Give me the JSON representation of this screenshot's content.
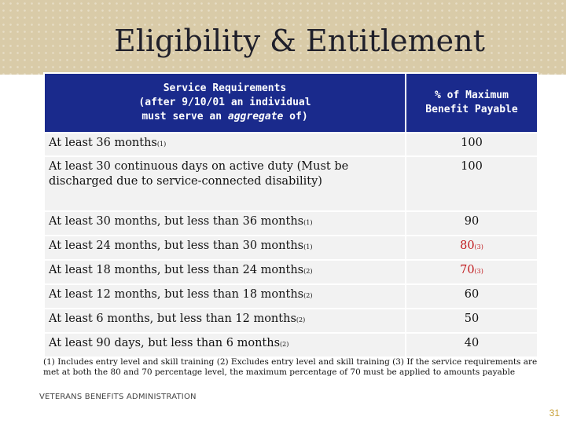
{
  "slide": {
    "title": "Eligibility & Entitlement",
    "footer": "VETERANS BENEFITS ADMINISTRATION",
    "page_number": "31"
  },
  "table": {
    "header": {
      "col1_line1": "Service Requirements",
      "col1_line2": "(after 9/10/01 an individual",
      "col1_line3_pre": "must serve an ",
      "col1_line3_em": "aggregate",
      "col1_line3_post": " of)",
      "col2_line1": "% of Maximum",
      "col2_line2": "Benefit Payable"
    },
    "rows": [
      {
        "requirement": "At least 36 months",
        "req_note": "(1)",
        "value": "100",
        "val_note": ""
      },
      {
        "requirement": "At least 30 continuous days on active duty (Must be discharged due to service-connected disability)",
        "req_note": "",
        "value": "100",
        "val_note": ""
      },
      {
        "requirement": "At least 30 months, but less than 36 months",
        "req_note": "(1)",
        "value": "90",
        "val_note": ""
      },
      {
        "requirement": "At least 24 months, but less than 30 months",
        "req_note": "(1)",
        "value": "80",
        "val_note": "(3)"
      },
      {
        "requirement": "At least 18 months, but less than 24 months",
        "req_note": "(2)",
        "value": "70",
        "val_note": "(3)"
      },
      {
        "requirement": "At least 12 months, but less than 18 months",
        "req_note": "(2)",
        "value": "60",
        "val_note": ""
      },
      {
        "requirement": "At least 6 months, but less than 12 months",
        "req_note": "(2)",
        "value": "50",
        "val_note": ""
      },
      {
        "requirement": "At least 90 days, but less than 6 months",
        "req_note": "(2)",
        "value": "40",
        "val_note": ""
      }
    ]
  },
  "footnotes": {
    "text": "(1)   Includes entry level and skill training  (2)   Excludes entry level and skill training  (3)  If the service requirements are met at both the 80 and 70 percentage level, the maximum percentage of 70 must be applied to amounts payable"
  }
}
